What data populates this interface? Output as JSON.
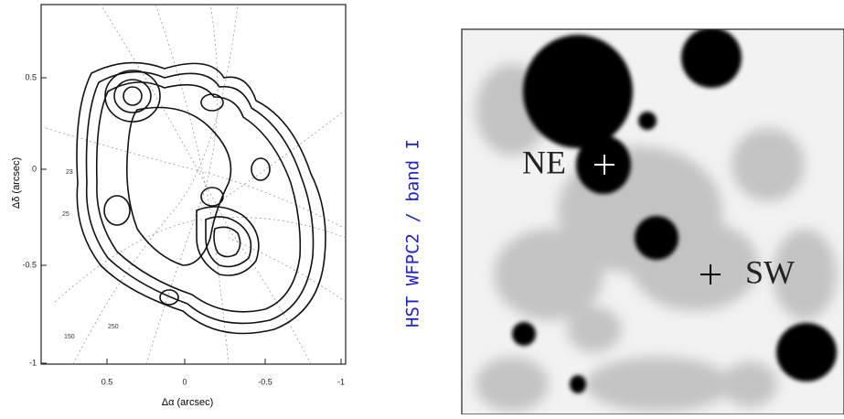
{
  "left_panel": {
    "y_ticks": [
      "0.5",
      "0",
      "-0.5",
      "-1"
    ],
    "x_ticks": [
      "0.5",
      "0",
      "-0.5",
      "-1"
    ],
    "x_label": "Δα (arcsec)",
    "y_label": "Δδ (arcsec)",
    "contour_labels": [
      "23",
      "25",
      "150",
      "250"
    ]
  },
  "side_label": "HST WFPC2 / band I",
  "right_panel": {
    "labels": [
      "NE",
      "SW"
    ]
  }
}
